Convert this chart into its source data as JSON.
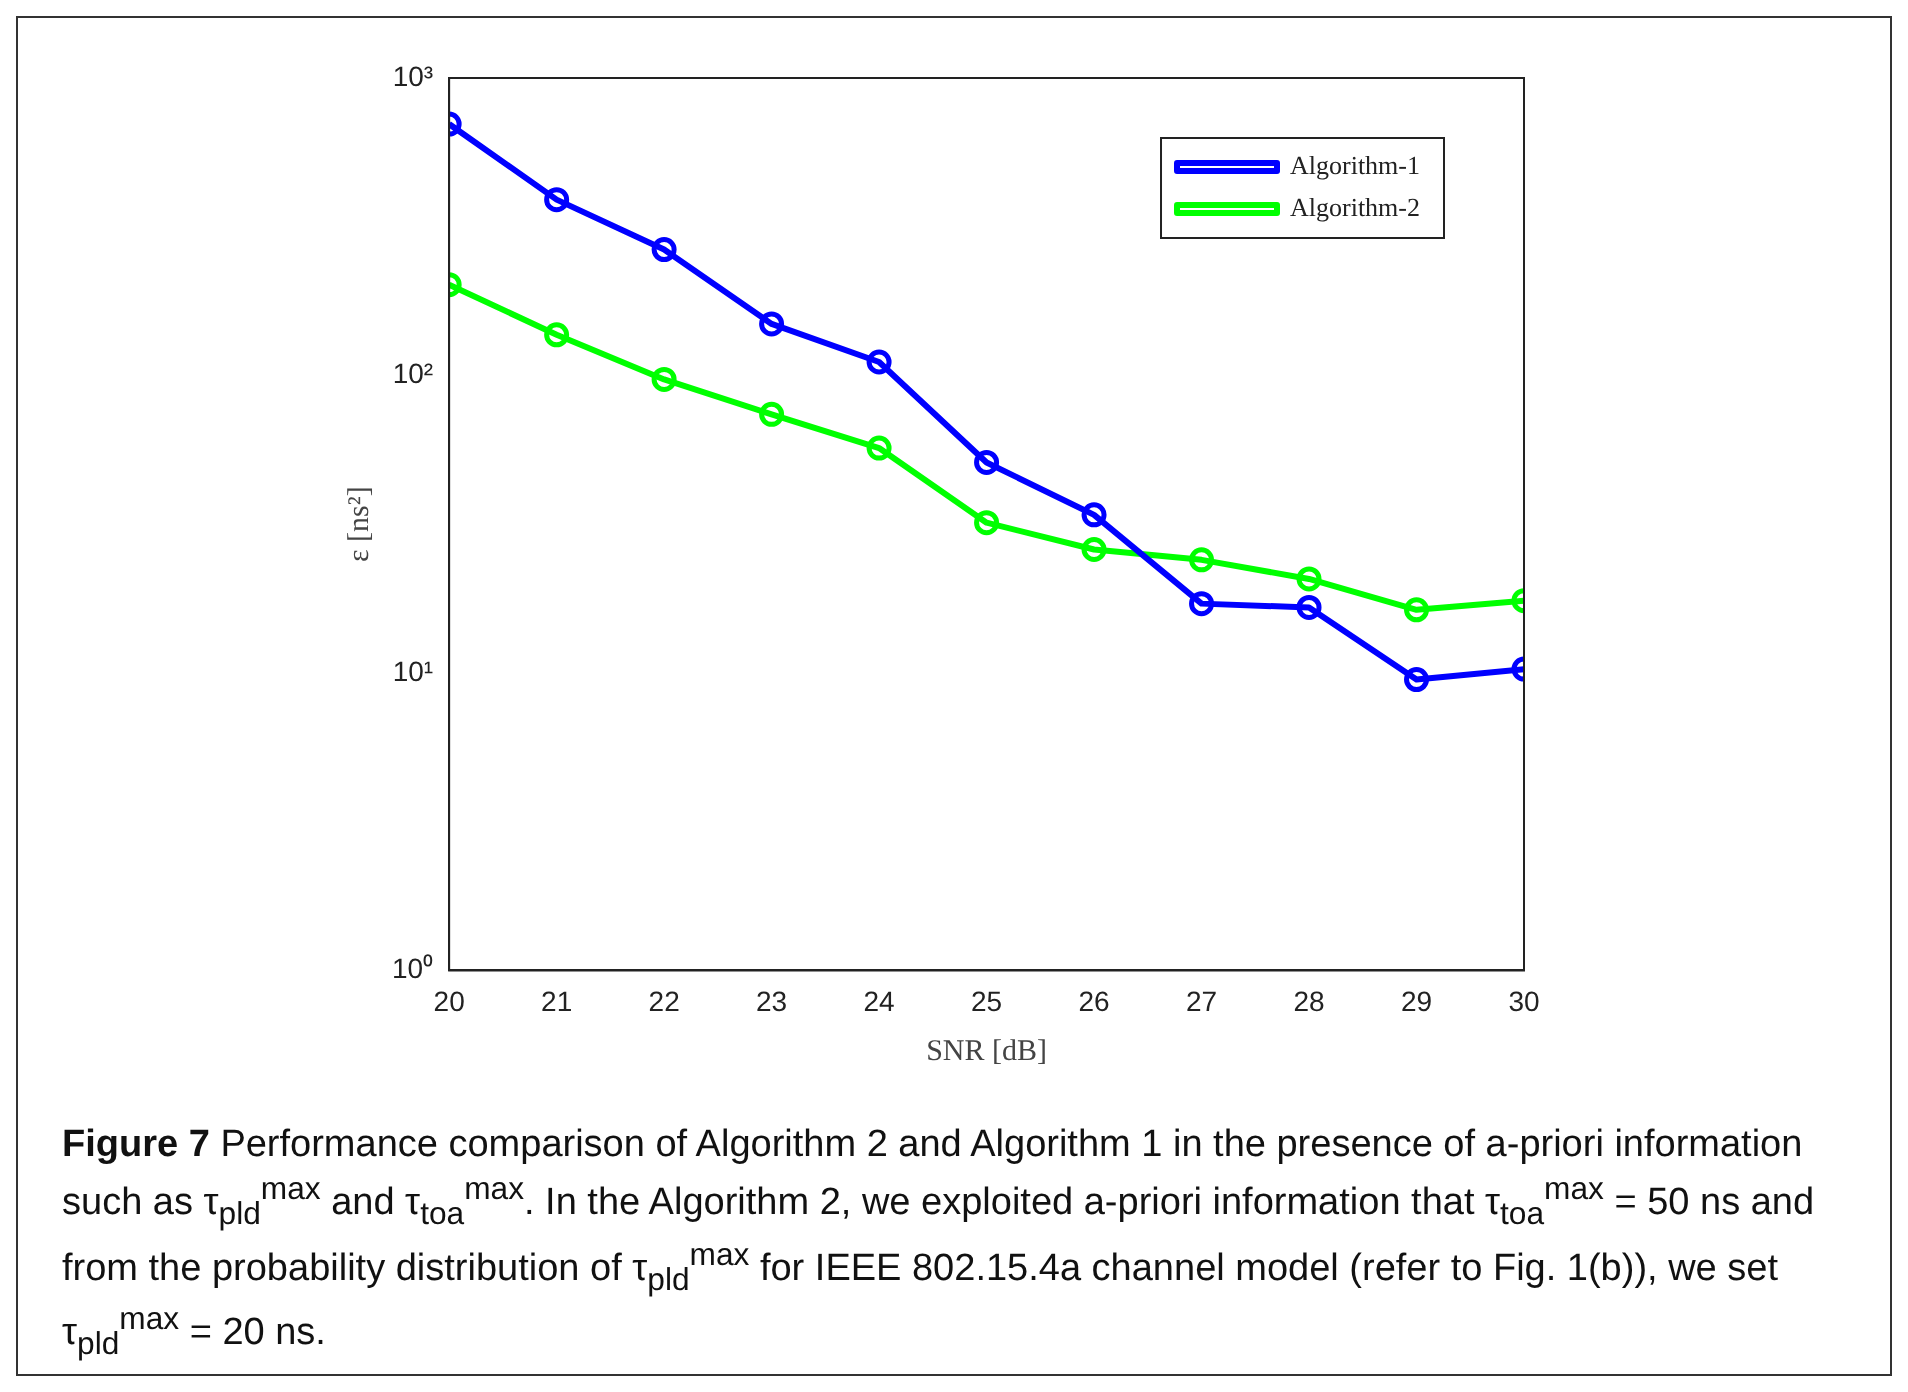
{
  "chart_data": {
    "type": "line",
    "xlabel": "SNR [dB]",
    "ylabel": "ε [ns²]",
    "x": [
      20,
      21,
      22,
      23,
      24,
      25,
      26,
      27,
      28,
      29,
      30
    ],
    "series": [
      {
        "name": "Algorithm-1",
        "color": "#0000ff",
        "values": [
          700,
          390,
          265,
          149,
          111,
          51,
          34,
          17.1,
          16.6,
          9.5,
          10.3
        ]
      },
      {
        "name": "Algorithm-2",
        "color": "#00ff00",
        "values": [
          202,
          137,
          97,
          74,
          57,
          32,
          26,
          24,
          20.7,
          16.3,
          17.5
        ]
      }
    ],
    "xlim": [
      20,
      30
    ],
    "xticks": [
      20,
      21,
      22,
      23,
      24,
      25,
      26,
      27,
      28,
      29,
      30
    ],
    "ylim": [
      1,
      1000
    ],
    "yticks": [
      {
        "value": 1,
        "label": "10⁰"
      },
      {
        "value": 10,
        "label": "10¹"
      },
      {
        "value": 100,
        "label": "10²"
      },
      {
        "value": 1000,
        "label": "10³"
      }
    ],
    "log": "y",
    "grid": false,
    "legend": "top right",
    "marker": "circle",
    "line_style": "solid",
    "annotations": [
      "Figure 7",
      "Performance comparison of Algorithm 2 and Algorithm 1 in the presence of a-priori information such as τ$_{pld}$$^{max}$ and τ$_{toa}$$^{max}$. In the Algorithm 2, we exploited a-priori information that τ$_{toa}$$^{max}$ = 50 ns and from the probability distribution of τ$_{pld}$$^{max}$ for IEEE 802.15.4a channel model (refer to Fig. 1(b)), we set τ$_{pld}$$^{max}$ = 20 ns."
    ]
  }
}
